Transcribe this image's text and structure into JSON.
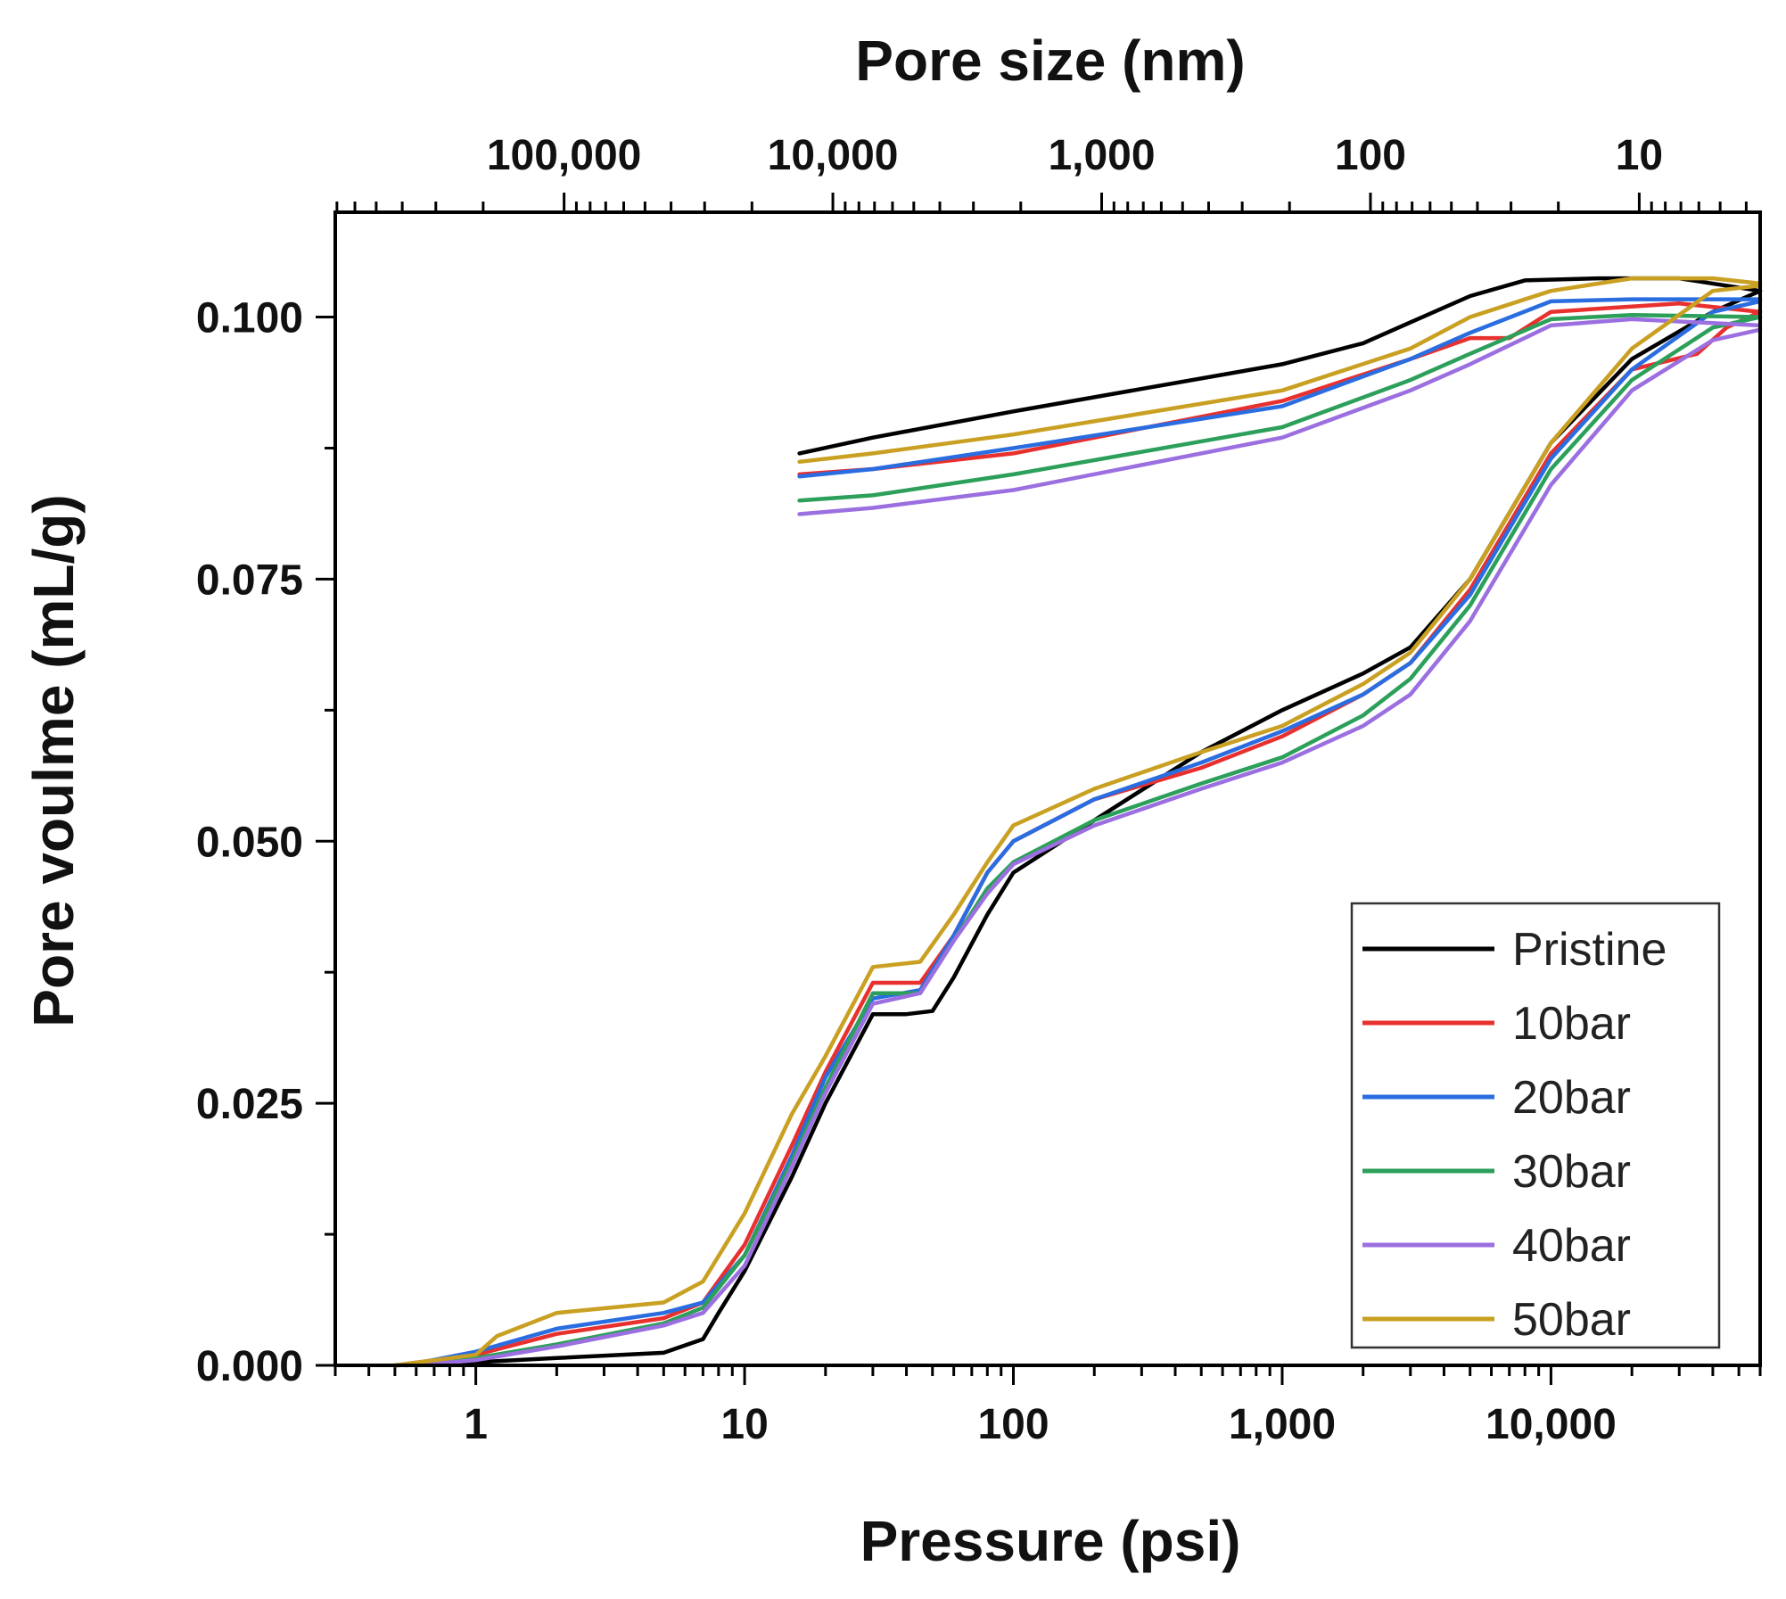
{
  "chart_data": {
    "type": "line",
    "title": "",
    "xlabel": "Pressure (psi)",
    "ylabel": "Pore voulme (mL/g)",
    "x2label": "Pore size (nm)",
    "xscale": "log",
    "xlim": [
      0.3,
      60000
    ],
    "ylim": [
      0,
      0.11
    ],
    "grid": false,
    "legend_position": "lower-right",
    "x_ticks": [
      {
        "value": 1,
        "label": "1"
      },
      {
        "value": 10,
        "label": "10"
      },
      {
        "value": 100,
        "label": "100"
      },
      {
        "value": 1000,
        "label": "1,000"
      },
      {
        "value": 10000,
        "label": "10,000"
      }
    ],
    "x2_ticks": [
      {
        "value": 100000,
        "label": "100,000"
      },
      {
        "value": 10000,
        "label": "10,000"
      },
      {
        "value": 1000,
        "label": "1,000"
      },
      {
        "value": 100,
        "label": "100"
      },
      {
        "value": 10,
        "label": "10"
      }
    ],
    "pore_size_conversion_nm_psi": 213000,
    "y_ticks": [
      {
        "value": 0.0,
        "label": "0.000"
      },
      {
        "value": 0.025,
        "label": "0.025"
      },
      {
        "value": 0.05,
        "label": "0.050"
      },
      {
        "value": 0.075,
        "label": "0.075"
      },
      {
        "value": 0.1,
        "label": "0.100"
      }
    ],
    "series": [
      {
        "name": "Pristine",
        "color": "#000000",
        "intrusion": [
          [
            0.5,
            0
          ],
          [
            1,
            0.0003
          ],
          [
            2,
            0.0007
          ],
          [
            5,
            0.0012
          ],
          [
            7,
            0.0025
          ],
          [
            8,
            0.005
          ],
          [
            10,
            0.009
          ],
          [
            15,
            0.018
          ],
          [
            20,
            0.025
          ],
          [
            30,
            0.0335
          ],
          [
            40,
            0.0335
          ],
          [
            50,
            0.0338
          ],
          [
            60,
            0.037
          ],
          [
            80,
            0.043
          ],
          [
            100,
            0.047
          ],
          [
            200,
            0.052
          ],
          [
            500,
            0.0585
          ],
          [
            1000,
            0.0625
          ],
          [
            2000,
            0.066
          ],
          [
            3000,
            0.0685
          ],
          [
            5000,
            0.075
          ],
          [
            10000,
            0.088
          ],
          [
            20000,
            0.096
          ],
          [
            40000,
            0.1005
          ],
          [
            60000,
            0.1025
          ]
        ],
        "extrusion": [
          [
            16,
            0.087
          ],
          [
            30,
            0.0885
          ],
          [
            100,
            0.091
          ],
          [
            1000,
            0.0955
          ],
          [
            2000,
            0.0975
          ],
          [
            3000,
            0.0995
          ],
          [
            5000,
            0.102
          ],
          [
            8000,
            0.1035
          ],
          [
            15000,
            0.1037
          ],
          [
            30000,
            0.1037
          ],
          [
            60000,
            0.1025
          ]
        ]
      },
      {
        "name": "10bar",
        "color": "#e8302e",
        "intrusion": [
          [
            0.5,
            0
          ],
          [
            1,
            0.001
          ],
          [
            2,
            0.003
          ],
          [
            5,
            0.0045
          ],
          [
            7,
            0.006
          ],
          [
            10,
            0.0115
          ],
          [
            15,
            0.021
          ],
          [
            20,
            0.028
          ],
          [
            30,
            0.0365
          ],
          [
            45,
            0.0365
          ],
          [
            60,
            0.041
          ],
          [
            80,
            0.047
          ],
          [
            100,
            0.05
          ],
          [
            200,
            0.054
          ],
          [
            500,
            0.057
          ],
          [
            1000,
            0.06
          ],
          [
            2000,
            0.064
          ],
          [
            3000,
            0.067
          ],
          [
            5000,
            0.074
          ],
          [
            10000,
            0.087
          ],
          [
            20000,
            0.095
          ],
          [
            35000,
            0.0965
          ],
          [
            45000,
            0.099
          ],
          [
            60000,
            0.1005
          ]
        ],
        "extrusion": [
          [
            16,
            0.085
          ],
          [
            30,
            0.0855
          ],
          [
            100,
            0.087
          ],
          [
            1000,
            0.092
          ],
          [
            3000,
            0.096
          ],
          [
            5000,
            0.098
          ],
          [
            7000,
            0.098
          ],
          [
            10000,
            0.1005
          ],
          [
            30000,
            0.1013
          ],
          [
            60000,
            0.1005
          ]
        ]
      },
      {
        "name": "20bar",
        "color": "#2a6de0",
        "intrusion": [
          [
            0.55,
            0
          ],
          [
            1,
            0.0013
          ],
          [
            2,
            0.0035
          ],
          [
            5,
            0.005
          ],
          [
            7,
            0.006
          ],
          [
            10,
            0.0105
          ],
          [
            15,
            0.02
          ],
          [
            20,
            0.0275
          ],
          [
            30,
            0.035
          ],
          [
            45,
            0.0358
          ],
          [
            60,
            0.041
          ],
          [
            80,
            0.047
          ],
          [
            100,
            0.05
          ],
          [
            200,
            0.054
          ],
          [
            500,
            0.0575
          ],
          [
            1000,
            0.0605
          ],
          [
            2000,
            0.064
          ],
          [
            3000,
            0.067
          ],
          [
            5000,
            0.0735
          ],
          [
            10000,
            0.0865
          ],
          [
            20000,
            0.095
          ],
          [
            40000,
            0.1005
          ],
          [
            60000,
            0.1015
          ]
        ],
        "extrusion": [
          [
            16,
            0.0848
          ],
          [
            30,
            0.0855
          ],
          [
            100,
            0.0875
          ],
          [
            1000,
            0.0915
          ],
          [
            3000,
            0.096
          ],
          [
            5000,
            0.0985
          ],
          [
            10000,
            0.1015
          ],
          [
            20000,
            0.1017
          ],
          [
            60000,
            0.1017
          ]
        ]
      },
      {
        "name": "30bar",
        "color": "#2ca05a",
        "intrusion": [
          [
            0.6,
            0
          ],
          [
            1,
            0.0007
          ],
          [
            2,
            0.002
          ],
          [
            5,
            0.004
          ],
          [
            7,
            0.0055
          ],
          [
            10,
            0.0105
          ],
          [
            15,
            0.0195
          ],
          [
            20,
            0.0265
          ],
          [
            30,
            0.0355
          ],
          [
            45,
            0.0355
          ],
          [
            60,
            0.0405
          ],
          [
            80,
            0.0455
          ],
          [
            100,
            0.048
          ],
          [
            200,
            0.052
          ],
          [
            500,
            0.0555
          ],
          [
            1000,
            0.058
          ],
          [
            2000,
            0.062
          ],
          [
            3000,
            0.0655
          ],
          [
            5000,
            0.0725
          ],
          [
            10000,
            0.0855
          ],
          [
            20000,
            0.094
          ],
          [
            40000,
            0.099
          ],
          [
            60000,
            0.1
          ]
        ],
        "extrusion": [
          [
            16,
            0.0825
          ],
          [
            30,
            0.083
          ],
          [
            100,
            0.085
          ],
          [
            1000,
            0.0895
          ],
          [
            3000,
            0.094
          ],
          [
            5000,
            0.0965
          ],
          [
            10000,
            0.0998
          ],
          [
            20000,
            0.1002
          ],
          [
            60000,
            0.1
          ]
        ]
      },
      {
        "name": "40bar",
        "color": "#9b6fe0",
        "intrusion": [
          [
            0.6,
            0
          ],
          [
            1,
            0.0005
          ],
          [
            2,
            0.0018
          ],
          [
            5,
            0.0038
          ],
          [
            7,
            0.005
          ],
          [
            10,
            0.0095
          ],
          [
            15,
            0.019
          ],
          [
            20,
            0.026
          ],
          [
            30,
            0.0345
          ],
          [
            45,
            0.0355
          ],
          [
            60,
            0.0405
          ],
          [
            80,
            0.045
          ],
          [
            100,
            0.0478
          ],
          [
            200,
            0.0515
          ],
          [
            500,
            0.055
          ],
          [
            1000,
            0.0575
          ],
          [
            2000,
            0.061
          ],
          [
            3000,
            0.064
          ],
          [
            5000,
            0.071
          ],
          [
            10000,
            0.084
          ],
          [
            20000,
            0.093
          ],
          [
            40000,
            0.0978
          ],
          [
            60000,
            0.0988
          ]
        ],
        "extrusion": [
          [
            16,
            0.0812
          ],
          [
            30,
            0.0818
          ],
          [
            100,
            0.0835
          ],
          [
            1000,
            0.0885
          ],
          [
            3000,
            0.093
          ],
          [
            5000,
            0.0955
          ],
          [
            10000,
            0.0992
          ],
          [
            20000,
            0.0998
          ],
          [
            60000,
            0.0992
          ]
        ]
      },
      {
        "name": "50bar",
        "color": "#c9a022",
        "intrusion": [
          [
            0.5,
            0
          ],
          [
            1,
            0.001
          ],
          [
            1.2,
            0.0028
          ],
          [
            2,
            0.005
          ],
          [
            5,
            0.006
          ],
          [
            7,
            0.008
          ],
          [
            10,
            0.0145
          ],
          [
            15,
            0.024
          ],
          [
            20,
            0.0295
          ],
          [
            30,
            0.038
          ],
          [
            45,
            0.0385
          ],
          [
            60,
            0.043
          ],
          [
            80,
            0.048
          ],
          [
            100,
            0.0515
          ],
          [
            200,
            0.055
          ],
          [
            500,
            0.0585
          ],
          [
            1000,
            0.061
          ],
          [
            2000,
            0.065
          ],
          [
            3000,
            0.068
          ],
          [
            5000,
            0.075
          ],
          [
            10000,
            0.088
          ],
          [
            20000,
            0.097
          ],
          [
            40000,
            0.1025
          ],
          [
            60000,
            0.103
          ]
        ],
        "extrusion": [
          [
            16,
            0.0862
          ],
          [
            30,
            0.087
          ],
          [
            100,
            0.0888
          ],
          [
            1000,
            0.093
          ],
          [
            3000,
            0.097
          ],
          [
            5000,
            0.1
          ],
          [
            10000,
            0.1025
          ],
          [
            20000,
            0.1037
          ],
          [
            40000,
            0.1037
          ],
          [
            60000,
            0.1032
          ]
        ]
      }
    ]
  }
}
